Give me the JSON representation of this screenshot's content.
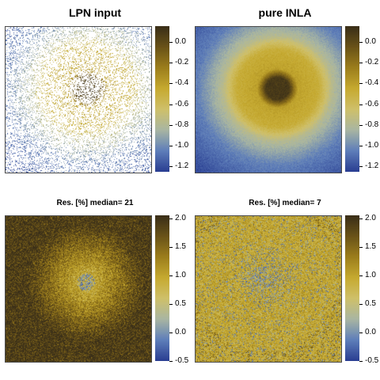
{
  "titles": {
    "lpn_input": "LPN input",
    "pure_inla": "pure INLA"
  },
  "subtitles": {
    "lpn_residuals": "Res. [%] median= 21",
    "inla_residuals": "Res. [%]  median= 7"
  },
  "colorbars": {
    "top": {
      "ticks": [
        "0.0",
        "-0.2",
        "-0.4",
        "-0.6",
        "-0.8",
        "-1.0",
        "-1.2"
      ],
      "min": -1.25,
      "max": 0.15
    },
    "bottom": {
      "ticks": [
        "2.0",
        "1.5",
        "1.0",
        "0.5",
        "0.0",
        "-0.5"
      ],
      "min": -0.5,
      "max": 2.05
    }
  },
  "colormap": [
    "#2a3f92",
    "#5f7fba",
    "#a9b6a2",
    "#cfc06a",
    "#c6aa30",
    "#9c7e1c",
    "#6a5318",
    "#3a2f18"
  ],
  "chart_data": [
    {
      "type": "heatmap",
      "title": "LPN input",
      "description": "sparse point observations on white background; dark cluster in center, yellow ring, blue at edges",
      "value_range": [
        -1.25,
        0.15
      ]
    },
    {
      "type": "heatmap",
      "title": "pure INLA",
      "description": "smooth field: dark core in center (~0.1), yellow ring (~-0.4), pale transition, blue corners (~-1.2)",
      "value_range": [
        -1.25,
        0.15
      ]
    },
    {
      "type": "heatmap",
      "title": "Res. [%] median= 21",
      "description": "noisy residuals mostly yellow/dark (1.0-2.0) with blue speckle near center",
      "value_range": [
        -0.5,
        2.05
      ]
    },
    {
      "type": "heatmap",
      "title": "Res. [%]  median= 7",
      "description": "noisy residuals mostly yellow (~1.0) with blue patch in center",
      "value_range": [
        -0.5,
        2.05
      ]
    }
  ]
}
